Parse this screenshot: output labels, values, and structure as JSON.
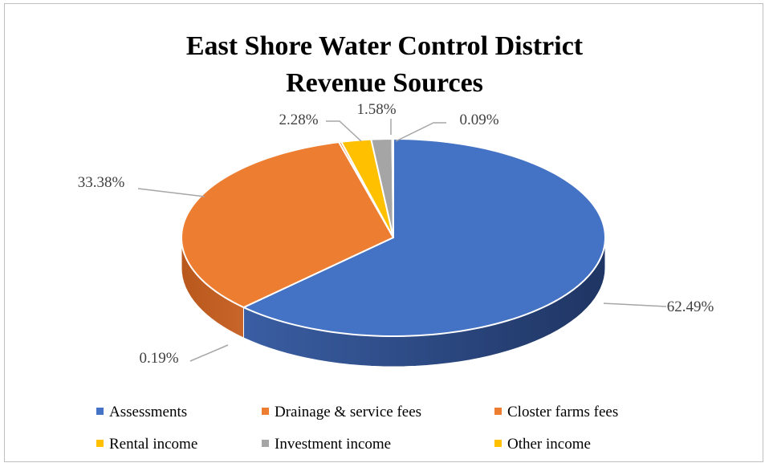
{
  "chart_data": {
    "type": "pie",
    "title": "East Shore Water Control District",
    "subtitle": "Revenue Sources",
    "style": "3d",
    "categories": [
      "Assessments",
      "Drainage & service fees",
      "Closter farms fees",
      "Rental income",
      "Investment income",
      "Other income"
    ],
    "values": [
      62.49,
      33.38,
      0.19,
      2.28,
      1.58,
      0.09
    ],
    "labels": [
      "62.49%",
      "33.38%",
      "0.19%",
      "2.28%",
      "1.58%",
      "0.09%"
    ],
    "colors": [
      "#4472c4",
      "#ed7d31",
      "#ed7d31",
      "#ffc000",
      "#a5a5a5",
      "#ffc000"
    ],
    "legend_position": "bottom"
  }
}
